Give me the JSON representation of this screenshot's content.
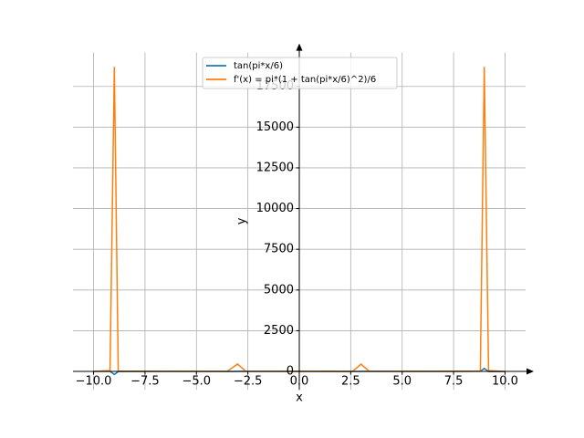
{
  "chart_data": {
    "type": "line",
    "x_label": "x",
    "y_label": "y",
    "x": [
      -10,
      -9.2,
      -8.99,
      -8.8,
      -6,
      -3.5,
      -3,
      -2.6,
      0,
      2.6,
      3,
      3.4,
      6,
      8.8,
      8.99,
      9.2,
      10
    ],
    "series": [
      {
        "name": "tan(pi*x/6)",
        "color": "#1f77b4",
        "values": [
          1.7,
          9.5,
          -189,
          -6,
          0,
          -3.7,
          0,
          3.7,
          0,
          -3.7,
          0,
          3.7,
          0,
          6,
          189,
          -9.5,
          -1.7
        ]
      },
      {
        "name": "f'(x) = pi*(1 + tan(pi*x/6)^2)/6",
        "color": "#ff7f0e",
        "values": [
          2,
          48,
          18700,
          20,
          0.5,
          8,
          450,
          8,
          0.5,
          8,
          450,
          8,
          0.5,
          20,
          18700,
          48,
          2
        ]
      }
    ],
    "xlim": [
      -11,
      11
    ],
    "ylim": [
      -1130,
      19580
    ],
    "xticks": [
      {
        "value": -10,
        "label": "−10.0"
      },
      {
        "value": -7.5,
        "label": "−7.5"
      },
      {
        "value": -5,
        "label": "−5.0"
      },
      {
        "value": -2.5,
        "label": "−2.5"
      },
      {
        "value": 0,
        "label": "0.0"
      },
      {
        "value": 2.5,
        "label": "2.5"
      },
      {
        "value": 5,
        "label": "5.0"
      },
      {
        "value": 7.5,
        "label": "7.5"
      },
      {
        "value": 10,
        "label": "10.0"
      }
    ],
    "yticks": [
      0,
      2500,
      5000,
      7500,
      10000,
      12500,
      15000,
      17500
    ],
    "grid": true,
    "legend": "upper center"
  }
}
